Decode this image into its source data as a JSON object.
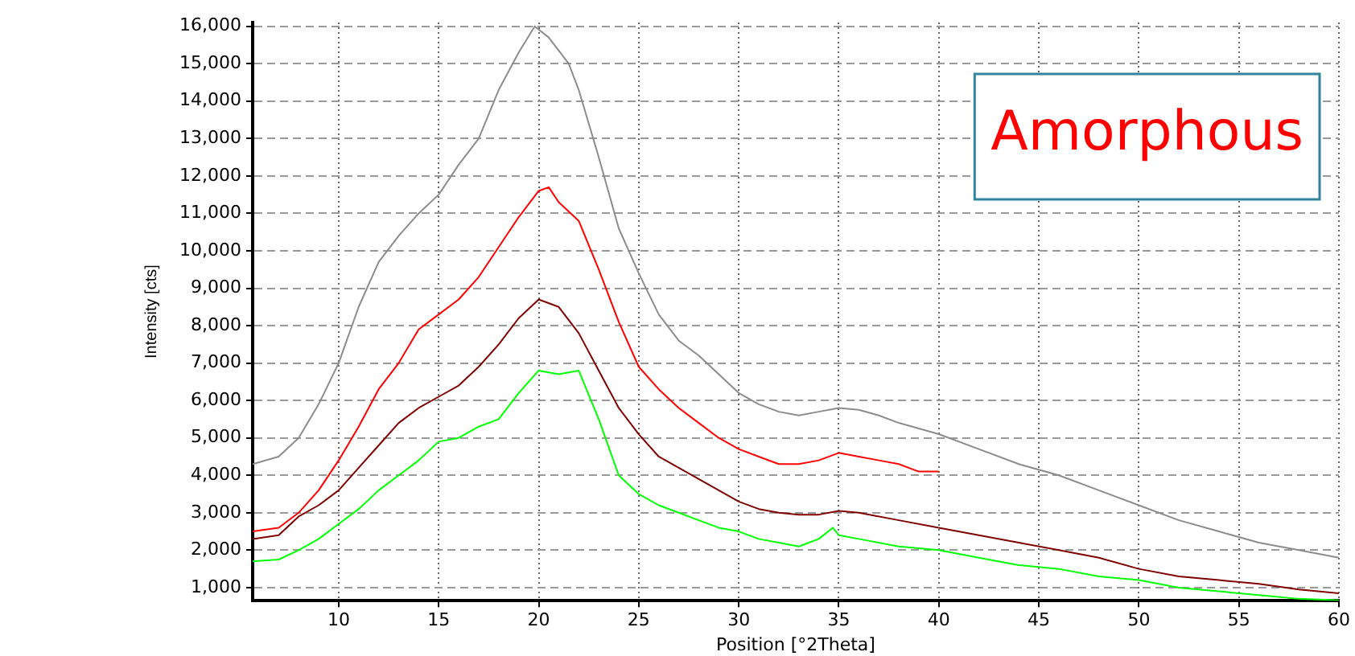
{
  "chart_data": {
    "type": "line",
    "xlabel": "Position [°2Theta]",
    "ylabel": "Intensity [cts]",
    "xlim": [
      5.7,
      60
    ],
    "xticks": [
      10,
      15,
      20,
      25,
      30,
      35,
      40,
      45,
      50,
      55,
      60
    ],
    "ylim": [
      650,
      16100
    ],
    "yticks": [
      {
        "value": 1000,
        "label": "1,000"
      },
      {
        "value": 2000,
        "label": "2,000"
      },
      {
        "value": 3000,
        "label": "3,000"
      },
      {
        "value": 4000,
        "label": "4,000"
      },
      {
        "value": 5000,
        "label": "5,000"
      },
      {
        "value": 6000,
        "label": "6,000"
      },
      {
        "value": 7000,
        "label": "7,000"
      },
      {
        "value": 8000,
        "label": "8,000"
      },
      {
        "value": 9000,
        "label": "9,000"
      },
      {
        "value": 10000,
        "label": "10,000"
      },
      {
        "value": 11000,
        "label": "11,000"
      },
      {
        "value": 12000,
        "label": "12,000"
      },
      {
        "value": 13000,
        "label": "13,000"
      },
      {
        "value": 14000,
        "label": "14,000"
      },
      {
        "value": 15000,
        "label": "15,000"
      },
      {
        "value": 16000,
        "label": "16,000"
      }
    ],
    "grid": true,
    "legend": false,
    "marker": "none",
    "line_style": "solid",
    "annotations": [
      "Amorphous"
    ],
    "series": [
      {
        "color": "#8c8c8c",
        "x": [
          5.7,
          7,
          8,
          9,
          10,
          11,
          12,
          13,
          14,
          15,
          16,
          17,
          18,
          19,
          19.8,
          20.5,
          21.5,
          22,
          23,
          24,
          25,
          26,
          27,
          28,
          29,
          30,
          31,
          32,
          33,
          34,
          35,
          36,
          37,
          38,
          40,
          42,
          44,
          46,
          48,
          50,
          52,
          54,
          56,
          58,
          60
        ],
        "values": [
          4300,
          4500,
          5000,
          5900,
          7000,
          8500,
          9700,
          10400,
          11000,
          11500,
          12300,
          13000,
          14300,
          15300,
          16000,
          15700,
          15000,
          14300,
          12500,
          10600,
          9400,
          8300,
          7600,
          7200,
          6700,
          6200,
          5900,
          5700,
          5600,
          5700,
          5800,
          5750,
          5600,
          5400,
          5100,
          4700,
          4300,
          4000,
          3600,
          3200,
          2800,
          2500,
          2200,
          2000,
          1800
        ]
      },
      {
        "color": "#ff0000",
        "x": [
          5.7,
          7,
          8,
          9,
          10,
          11,
          12,
          13,
          14,
          15,
          16,
          17,
          18,
          19,
          20,
          20.5,
          21,
          22,
          23,
          24,
          25,
          26,
          27,
          28,
          29,
          30,
          31,
          32,
          33,
          34,
          35,
          36,
          37,
          38,
          39,
          40
        ],
        "values": [
          2500,
          2600,
          3000,
          3600,
          4400,
          5300,
          6300,
          7000,
          7900,
          8300,
          8700,
          9300,
          10100,
          10900,
          11600,
          11700,
          11300,
          10800,
          9500,
          8100,
          6900,
          6300,
          5800,
          5400,
          5000,
          4700,
          4500,
          4300,
          4300,
          4400,
          4600,
          4500,
          4400,
          4300,
          4100,
          4100
        ]
      },
      {
        "color": "#800000",
        "x": [
          5.7,
          7,
          8,
          9,
          10,
          11,
          12,
          13,
          14,
          15,
          16,
          17,
          18,
          19,
          20,
          21,
          22,
          23,
          24,
          25,
          26,
          27,
          28,
          29,
          30,
          31,
          32,
          33,
          34,
          35,
          36,
          38,
          40,
          42,
          44,
          46,
          48,
          50,
          52,
          54,
          56,
          58,
          60
        ],
        "values": [
          2300,
          2400,
          2900,
          3200,
          3600,
          4200,
          4800,
          5400,
          5800,
          6100,
          6400,
          6900,
          7500,
          8200,
          8700,
          8500,
          7800,
          6800,
          5800,
          5100,
          4500,
          4200,
          3900,
          3600,
          3300,
          3100,
          3000,
          2950,
          2950,
          3050,
          3000,
          2800,
          2600,
          2400,
          2200,
          2000,
          1800,
          1500,
          1300,
          1200,
          1100,
          950,
          850
        ]
      },
      {
        "color": "#00ff00",
        "x": [
          5.7,
          7,
          8,
          9,
          10,
          11,
          12,
          13,
          14,
          15,
          16,
          17,
          18,
          19,
          20,
          21,
          22,
          23,
          24,
          25,
          26,
          27,
          28,
          29,
          30,
          31,
          32,
          33,
          34,
          34.7,
          35,
          36,
          38,
          40,
          42,
          44,
          46,
          48,
          50,
          52,
          54,
          56,
          58,
          60
        ],
        "values": [
          1700,
          1750,
          2000,
          2300,
          2700,
          3100,
          3600,
          4000,
          4400,
          4900,
          5000,
          5300,
          5500,
          6200,
          6800,
          6700,
          6800,
          5500,
          4000,
          3500,
          3200,
          3000,
          2800,
          2600,
          2500,
          2300,
          2200,
          2100,
          2300,
          2600,
          2400,
          2300,
          2100,
          2000,
          1800,
          1600,
          1500,
          1300,
          1200,
          1000,
          900,
          800,
          700,
          660
        ]
      }
    ]
  }
}
